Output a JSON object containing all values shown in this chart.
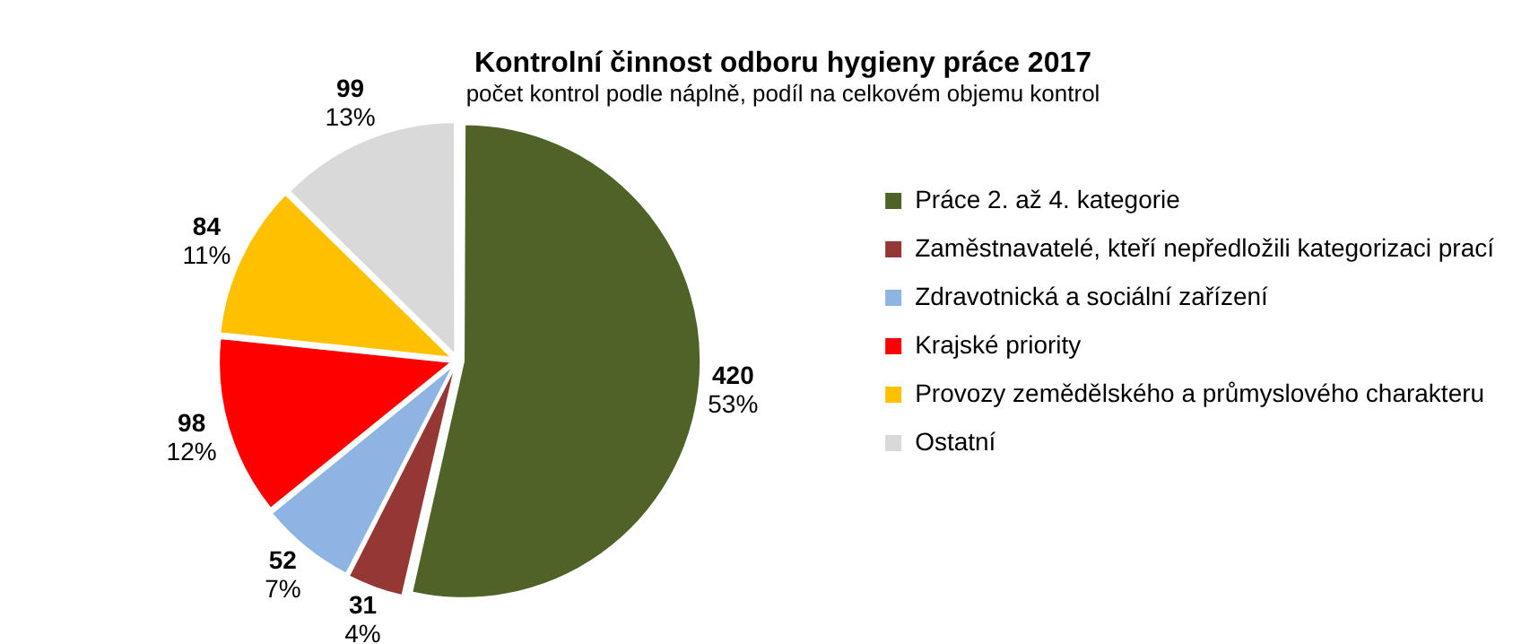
{
  "chart_data": {
    "type": "pie",
    "title": "Kontrolní činnost odboru hygieny práce 2017",
    "subtitle": "počet kontrol podle náplně, podíl na celkovém objemu kontrol",
    "categories": [
      "Práce 2. až 4. kategorie",
      "Zaměstnavatelé, kteří nepředložili kategorizaci prací",
      "Zdravotnická a sociální zařízení",
      "Krajské priority",
      "Provozy zemědělského a průmyslového charakteru",
      "Ostatní"
    ],
    "values": [
      420,
      31,
      52,
      98,
      84,
      99
    ],
    "colors": [
      "#4f6228",
      "#953735",
      "#8eb4e3",
      "#ff0000",
      "#ffc000",
      "#d9d9d9"
    ],
    "value_labels": [
      "420\n53%",
      "31\n4%",
      "52\n7%",
      "98\n12%",
      "84\n11%",
      "99\n13%"
    ],
    "legend": "right"
  }
}
